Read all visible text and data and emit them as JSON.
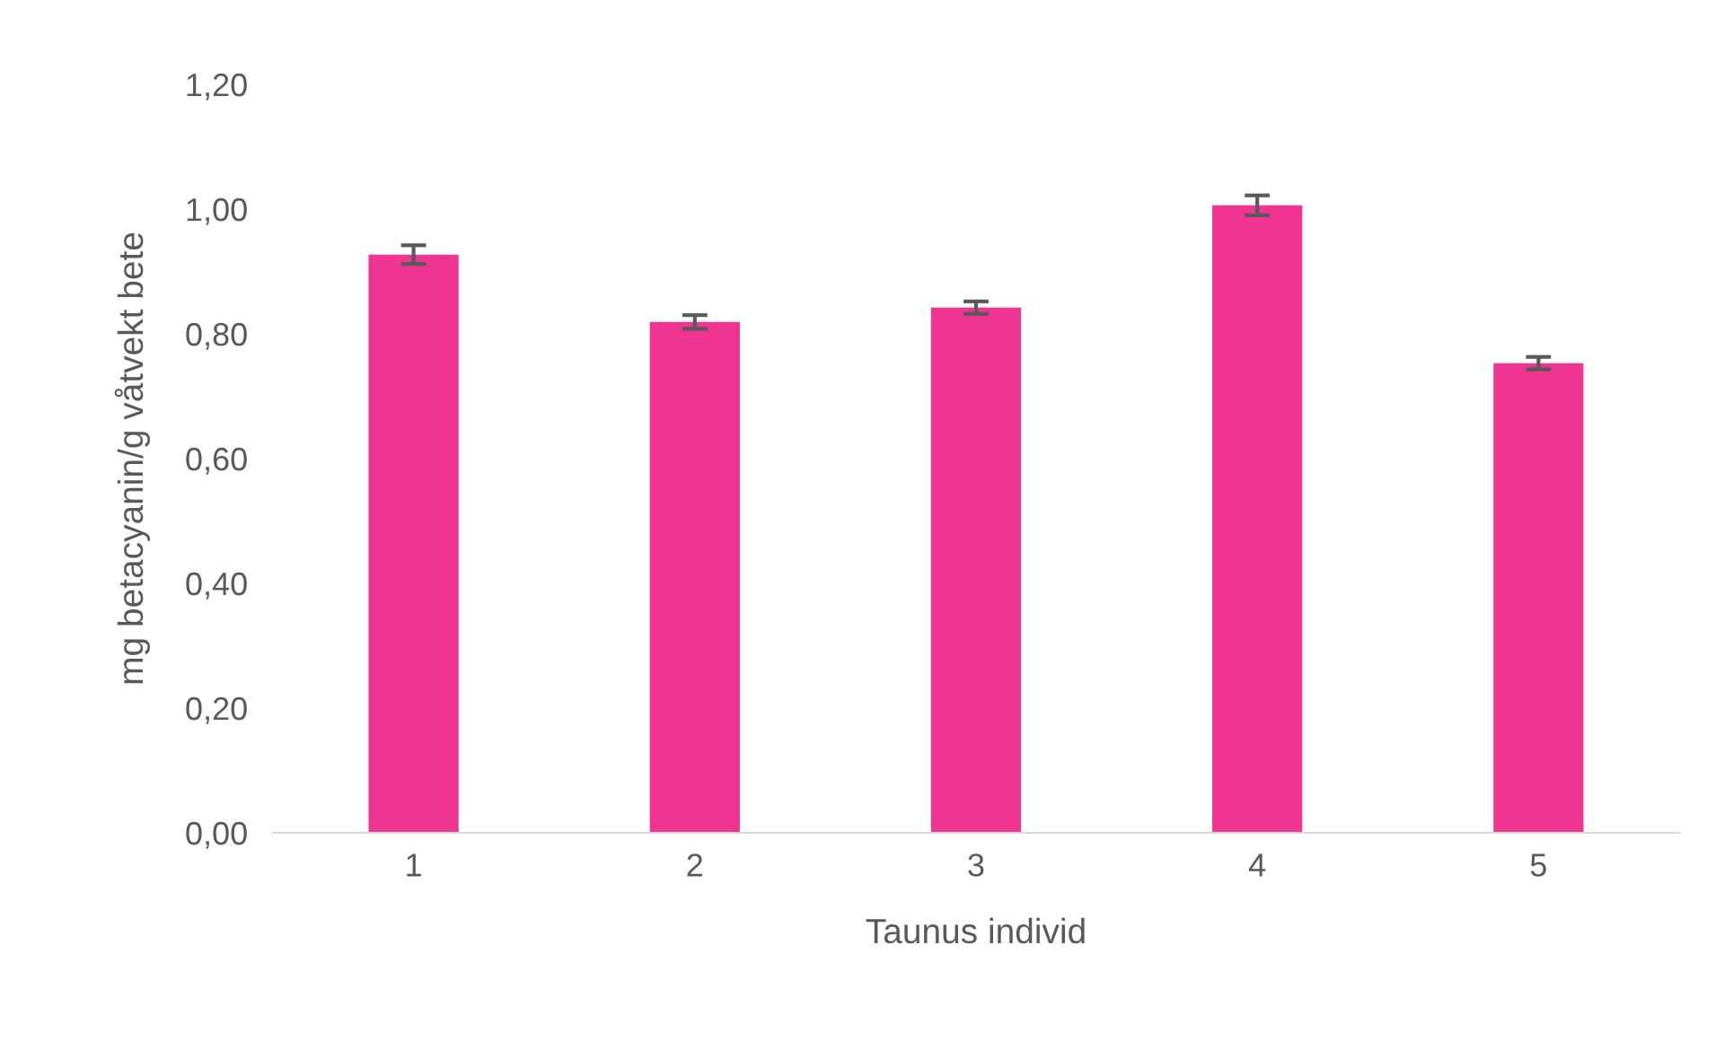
{
  "chart_data": {
    "type": "bar",
    "xlabel": "Taunus individ",
    "ylabel": "mg betacyanin/g våtvekt bete",
    "categories": [
      "1",
      "2",
      "3",
      "4",
      "5"
    ],
    "values": [
      0.927,
      0.819,
      0.842,
      1.006,
      0.753
    ],
    "errors": [
      0.015,
      0.011,
      0.01,
      0.016,
      0.01
    ],
    "color": "#ef3591",
    "ylim": [
      0,
      1.2
    ],
    "yticks": [
      {
        "value": 0,
        "label": "0,00"
      },
      {
        "value": 0.2,
        "label": "0,20"
      },
      {
        "value": 0.4,
        "label": "0,40"
      },
      {
        "value": 0.6,
        "label": "0,60"
      },
      {
        "value": 0.8,
        "label": "0,80"
      },
      {
        "value": 1.0,
        "label": "1,00"
      },
      {
        "value": 1.2,
        "label": "1,20"
      }
    ],
    "grid": false,
    "legend": false
  }
}
